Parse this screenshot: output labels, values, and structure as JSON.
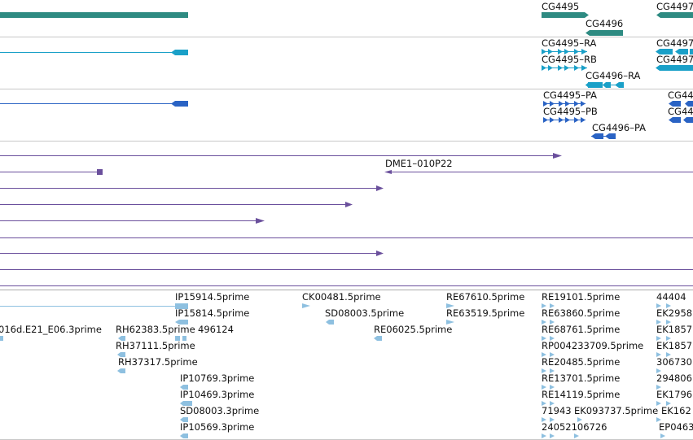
{
  "colors": {
    "gene": "#2e8b82",
    "transcript": "#1aa0c8",
    "protein": "#2a63c4",
    "clone": "#6a4f9c",
    "est": "#8ec0e0",
    "divider": "#c8c8c8",
    "text": "#111111"
  },
  "tracks": {
    "genes": [
      {
        "label": "CG4495"
      },
      {
        "label": "CG4496"
      },
      {
        "label": "CG4497"
      }
    ],
    "transcripts": [
      {
        "label": "CG4495–RA"
      },
      {
        "label": "CG4495–RB"
      },
      {
        "label": "CG4496–RA"
      },
      {
        "label": "CG4497"
      },
      {
        "label": "CG4497"
      }
    ],
    "proteins": [
      {
        "label": "CG4495–PA"
      },
      {
        "label": "CG4495–PB"
      },
      {
        "label": "CG4496–PA"
      },
      {
        "label": "CG44"
      },
      {
        "label": "CG44"
      }
    ],
    "clones": [
      {
        "label": "DME1–010P22"
      }
    ],
    "ests": [
      {
        "label": "IP15914.5prime"
      },
      {
        "label": "IP15814.5prime"
      },
      {
        "label": "016d.E21_E06.3prime"
      },
      {
        "label": "RH62383.5prime"
      },
      {
        "label": "496124"
      },
      {
        "label": "RH37111.5prime"
      },
      {
        "label": "RH37317.5prime"
      },
      {
        "label": "IP10769.3prime"
      },
      {
        "label": "IP10469.3prime"
      },
      {
        "label": "SD08003.3prime"
      },
      {
        "label": "IP10569.3prime"
      },
      {
        "label": "CK00481.5prime"
      },
      {
        "label": "SD08003.5prime"
      },
      {
        "label": "RE67610.5prime"
      },
      {
        "label": "RE63519.5prime"
      },
      {
        "label": "RE06025.5prime"
      },
      {
        "label": "RE19101.5prime"
      },
      {
        "label": "RE63860.5prime"
      },
      {
        "label": "RE68761.5prime"
      },
      {
        "label": "RP004233709.5prime"
      },
      {
        "label": "RE20485.5prime"
      },
      {
        "label": "RE13701.5prime"
      },
      {
        "label": "RE14119.5prime"
      },
      {
        "label": "71943"
      },
      {
        "label": "EK093737.5prime"
      },
      {
        "label": "24052106726"
      },
      {
        "label": "44404"
      },
      {
        "label": "EK2958"
      },
      {
        "label": "EK1857"
      },
      {
        "label": "EK1857"
      },
      {
        "label": "306730"
      },
      {
        "label": "294806"
      },
      {
        "label": "EK1796"
      },
      {
        "label": "EK162"
      },
      {
        "label": "EP0463"
      }
    ]
  }
}
